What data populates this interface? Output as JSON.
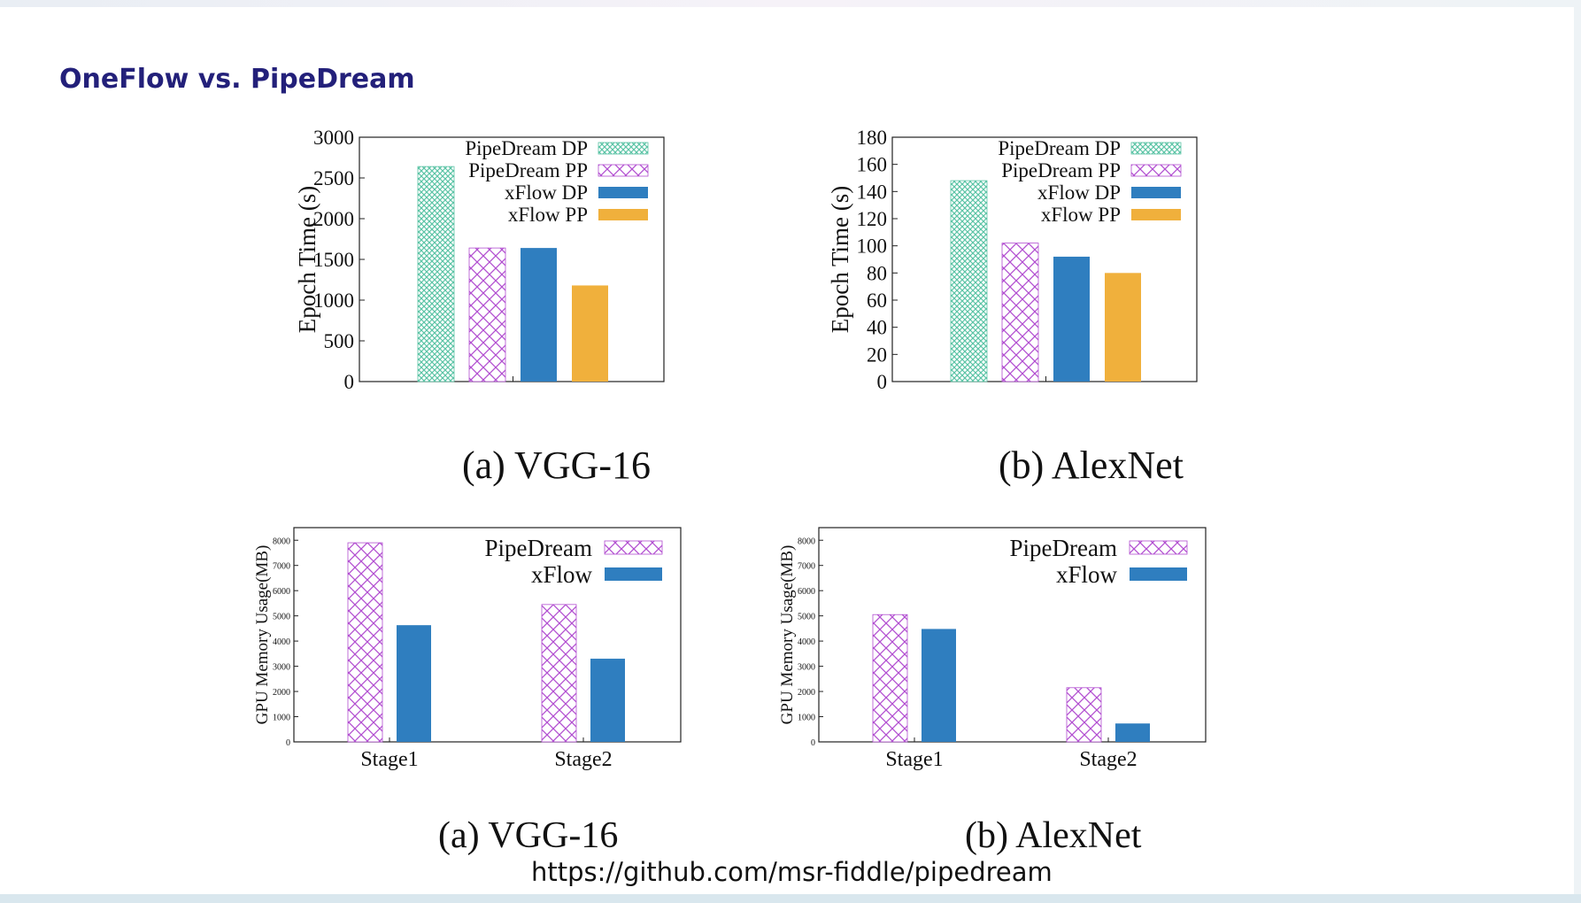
{
  "slide": {
    "title": "OneFlow vs. PipeDream",
    "source_url": "https://github.com/msr-fiddle/pipedream"
  },
  "colors": {
    "pipedream_dp": "#5cc4a6",
    "pipedream_pp": "#b24fd1",
    "xflow_dp": "#2f7ebf",
    "xflow_pp": "#f0b03c",
    "title": "#23207a"
  },
  "chart_data": [
    {
      "type": "bar",
      "caption": "(a) VGG-16",
      "ylabel": "Epoch Time (s)",
      "ylim": [
        0,
        3000
      ],
      "yticks": [
        0,
        500,
        1000,
        1500,
        2000,
        2500,
        3000
      ],
      "legend_position": "top-right",
      "series": [
        {
          "name": "PipeDream DP",
          "value": 2640,
          "pattern": "checker",
          "color": "#5cc4a6"
        },
        {
          "name": "PipeDream PP",
          "value": 1640,
          "pattern": "cross",
          "color": "#b24fd1"
        },
        {
          "name": "xFlow DP",
          "value": 1640,
          "pattern": "solid",
          "color": "#2f7ebf"
        },
        {
          "name": "xFlow PP",
          "value": 1180,
          "pattern": "solid",
          "color": "#f0b03c"
        }
      ]
    },
    {
      "type": "bar",
      "caption": "(b) AlexNet",
      "ylabel": "Epoch Time (s)",
      "ylim": [
        0,
        180
      ],
      "yticks": [
        0,
        20,
        40,
        60,
        80,
        100,
        120,
        140,
        160,
        180
      ],
      "legend_position": "top-right",
      "series": [
        {
          "name": "PipeDream DP",
          "value": 148,
          "pattern": "checker",
          "color": "#5cc4a6"
        },
        {
          "name": "PipeDream PP",
          "value": 102,
          "pattern": "cross",
          "color": "#b24fd1"
        },
        {
          "name": "xFlow DP",
          "value": 92,
          "pattern": "solid",
          "color": "#2f7ebf"
        },
        {
          "name": "xFlow PP",
          "value": 80,
          "pattern": "solid",
          "color": "#f0b03c"
        }
      ]
    },
    {
      "type": "bar",
      "caption": "(a) VGG-16",
      "ylabel": "GPU Memory Usage(MB)",
      "ylim": [
        0,
        8500
      ],
      "yticks": [
        0,
        1000,
        2000,
        3000,
        4000,
        5000,
        6000,
        7000,
        8000
      ],
      "legend_position": "top-right",
      "categories": [
        "Stage1",
        "Stage2"
      ],
      "series": [
        {
          "name": "PipeDream",
          "values": [
            7900,
            5450
          ],
          "pattern": "cross",
          "color": "#b24fd1"
        },
        {
          "name": "xFlow",
          "values": [
            4630,
            3300
          ],
          "pattern": "solid",
          "color": "#2f7ebf"
        }
      ]
    },
    {
      "type": "bar",
      "caption": "(b) AlexNet",
      "ylabel": "GPU Memory Usage(MB)",
      "ylim": [
        0,
        8500
      ],
      "yticks": [
        0,
        1000,
        2000,
        3000,
        4000,
        5000,
        6000,
        7000,
        8000
      ],
      "legend_position": "top-right",
      "categories": [
        "Stage1",
        "Stage2"
      ],
      "series": [
        {
          "name": "PipeDream",
          "values": [
            5050,
            2150
          ],
          "pattern": "cross",
          "color": "#b24fd1"
        },
        {
          "name": "xFlow",
          "values": [
            4480,
            730
          ],
          "pattern": "solid",
          "color": "#2f7ebf"
        }
      ]
    }
  ]
}
